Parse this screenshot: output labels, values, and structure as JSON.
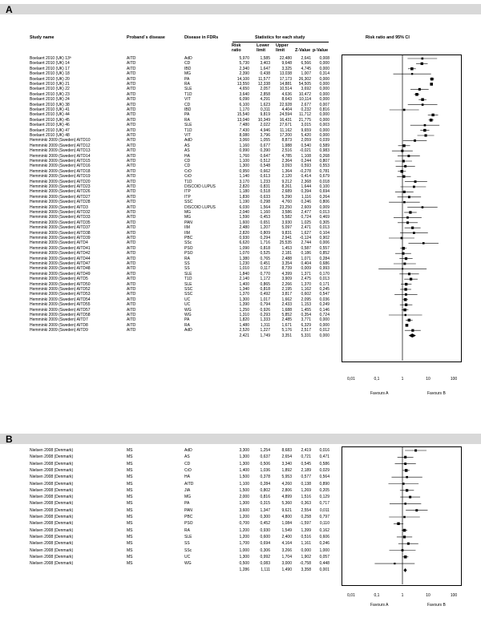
{
  "panel_a": {
    "label": "A",
    "headers": {
      "study": "Study name",
      "proband": "Proband´s disease",
      "fdr": "Disease in FDRs",
      "stats": "Statistics for each study",
      "rr": "Risk ratio",
      "lower": "Lower limit",
      "upper": "Upper limit",
      "z": "Z-Value",
      "p": "p-Value",
      "ci": "Risk ratio and 95% CI"
    },
    "axis_ticks": [
      "0,01",
      "0,1",
      "1",
      "10",
      "100"
    ],
    "favours_a": "Favours A",
    "favours_b": "Favours B",
    "rows": [
      {
        "study": "Boelaert 2010 (UK) 13ª",
        "proband": "AITD",
        "fdr": "AdD",
        "rr": "5,970",
        "lo": "1,585",
        "hi": "22,480",
        "z": "2,641",
        "p": "0,008"
      },
      {
        "study": "Boelaert 2010 (UK) 14",
        "proband": "AITD",
        "fdr": "CD",
        "rr": "5,730",
        "lo": "3,403",
        "hi": "9,648",
        "z": "6,566",
        "p": "0,000"
      },
      {
        "study": "Boelaert 2010 (UK) 17",
        "proband": "AITD",
        "fdr": "IBD",
        "rr": "2,340",
        "lo": "1,647",
        "hi": "3,325",
        "z": "4,745",
        "p": "0,000"
      },
      {
        "study": "Boelaert 2010 (UK) 18",
        "proband": "AITD",
        "fdr": "MG",
        "rr": "2,390",
        "lo": "0,438",
        "hi": "13,038",
        "z": "1,007",
        "p": "0,314"
      },
      {
        "study": "Boelaert 2010 (UK) 20",
        "proband": "AITD",
        "fdr": "PA",
        "rr": "14,100",
        "lo": "11,577",
        "hi": "17,173",
        "z": "26,302",
        "p": "0,000"
      },
      {
        "study": "Boelaert 2010 (UK) 21",
        "proband": "AITD",
        "fdr": "RA",
        "rr": "13,550",
        "lo": "12,338",
        "hi": "14,881",
        "z": "54,505",
        "p": "0,000"
      },
      {
        "study": "Boelaert 2010 (UK) 22",
        "proband": "AITD",
        "fdr": "SLE",
        "rr": "4,650",
        "lo": "2,057",
        "hi": "10,514",
        "z": "3,692",
        "p": "0,000"
      },
      {
        "study": "Boelaert 2010 (UK) 23",
        "proband": "AITD",
        "fdr": "T1D",
        "rr": "3,640",
        "lo": "2,858",
        "hi": "4,636",
        "z": "10,472",
        "p": "0,000"
      },
      {
        "study": "Boelaert 2010 (UK) 24",
        "proband": "AITD",
        "fdr": "VIT",
        "rr": "6,090",
        "lo": "4,291",
        "hi": "8,643",
        "z": "10,114",
        "p": "0,000"
      },
      {
        "study": "Boelaert 2010 (UK) 38",
        "proband": "AITD",
        "fdr": "CD",
        "rr": "6,100",
        "lo": "1,623",
        "hi": "22,928",
        "z": "2,677",
        "p": "0,007"
      },
      {
        "study": "Boelaert 2010 (UK) 41",
        "proband": "AITD",
        "fdr": "IBD",
        "rr": "1,170",
        "lo": "0,311",
        "hi": "4,404",
        "z": "0,232",
        "p": "0,816"
      },
      {
        "study": "Boelaert 2010 (UK) 44",
        "proband": "AITD",
        "fdr": "PA",
        "rr": "15,540",
        "lo": "9,819",
        "hi": "24,594",
        "z": "11,712",
        "p": "0,000"
      },
      {
        "study": "Boelaert 2010 (UK) 45",
        "proband": "AITD",
        "fdr": "RA",
        "rr": "13,040",
        "lo": "10,349",
        "hi": "16,431",
        "z": "21,775",
        "p": "0,000"
      },
      {
        "study": "Boelaert 2010 (UK) 46",
        "proband": "AITD",
        "fdr": "SLE",
        "rr": "7,480",
        "lo": "2,022",
        "hi": "27,671",
        "z": "3,015",
        "p": "0,003"
      },
      {
        "study": "Boelaert 2010 (UK) 47",
        "proband": "AITD",
        "fdr": "T1D",
        "rr": "7,430",
        "lo": "4,946",
        "hi": "11,162",
        "z": "9,659",
        "p": "0,000"
      },
      {
        "study": "Boelaert 2010 (UK) 48",
        "proband": "AITD",
        "fdr": "VIT",
        "rr": "8,080",
        "lo": "3,796",
        "hi": "17,200",
        "z": "5,420",
        "p": "0,000"
      },
      {
        "study": "Hemminki 2009 (Sweden) AITD10",
        "proband": "AITD",
        "fdr": "AdD",
        "rr": "3,060",
        "lo": "1,055",
        "hi": "8,873",
        "z": "2,059",
        "p": "0,039"
      },
      {
        "study": "Hemminki 2009 (Sweden) AITD12",
        "proband": "AITD",
        "fdr": "AS",
        "rr": "1,160",
        "lo": "0,677",
        "hi": "1,988",
        "z": "0,540",
        "p": "0,589"
      },
      {
        "study": "Hemminki 2009 (Sweden) AITD13",
        "proband": "AITD",
        "fdr": "AS",
        "rr": "0,990",
        "lo": "0,390",
        "hi": "2,516",
        "z": "-0,021",
        "p": "0,983"
      },
      {
        "study": "Hemminki 2009 (Sweden) AITD14",
        "proband": "AITD",
        "fdr": "HA",
        "rr": "1,760",
        "lo": "0,647",
        "hi": "4,785",
        "z": "1,108",
        "p": "0,268"
      },
      {
        "study": "Hemminki 2009 (Sweden) AITD15",
        "proband": "AITD",
        "fdr": "CD",
        "rr": "1,100",
        "lo": "0,512",
        "hi": "2,364",
        "z": "0,244",
        "p": "0,807"
      },
      {
        "study": "Hemminki 2009 (Sweden) AITD16",
        "proband": "AITD",
        "fdr": "CD",
        "rr": "1,300",
        "lo": "0,548",
        "hi": "3,093",
        "z": "0,593",
        "p": "0,553"
      },
      {
        "study": "Hemminki 2009 (Sweden) AITD18",
        "proband": "AITD",
        "fdr": "CrD",
        "rr": "0,950",
        "lo": "0,662",
        "hi": "1,364",
        "z": "-0,278",
        "p": "0,781"
      },
      {
        "study": "Hemminki 2009 (Sweden) AITD19",
        "proband": "AITD",
        "fdr": "CrD",
        "rr": "1,140",
        "lo": "0,613",
        "hi": "2,120",
        "z": "0,414",
        "p": "0,679"
      },
      {
        "study": "Hemminki 2009 (Sweden) AITD20",
        "proband": "AITD",
        "fdr": "T1D",
        "rr": "3,170",
        "lo": "1,233",
        "hi": "9,212",
        "z": "2,368",
        "p": "0,018"
      },
      {
        "study": "Hemminki 2009 (Sweden) AITD23",
        "proband": "AITD",
        "fdr": "DISCOID LUPUS",
        "rr": "2,820",
        "lo": "0,831",
        "hi": "8,261",
        "z": "1,644",
        "p": "0,100"
      },
      {
        "study": "Hemminki 2009 (Sweden) AITD26",
        "proband": "AITD",
        "fdr": "ITP",
        "rr": "1,180",
        "lo": "0,518",
        "hi": "2,689",
        "z": "0,394",
        "p": "0,694"
      },
      {
        "study": "Hemminki 2009 (Sweden) AITD27",
        "proband": "AITD",
        "fdr": "ITP",
        "rr": "1,830",
        "lo": "0,633",
        "hi": "5,290",
        "z": "1,116",
        "p": "0,264"
      },
      {
        "study": "Hemminki 2009 (Sweden) AITD28",
        "proband": "AITD",
        "fdr": "SSC",
        "rr": "1,190",
        "lo": "0,298",
        "hi": "4,760",
        "z": "0,246",
        "p": "0,806"
      },
      {
        "study": "Hemminki 2009 (Sweden) AITD3",
        "proband": "AITD",
        "fdr": "DISCOID LUPUS",
        "rr": "6,030",
        "lo": "1,564",
        "hi": "23,250",
        "z": "2,609",
        "p": "0,009"
      },
      {
        "study": "Hemminki 2009 (Sweden) AITD32",
        "proband": "AITD",
        "fdr": "MG",
        "rr": "2,040",
        "lo": "1,160",
        "hi": "3,586",
        "z": "2,477",
        "p": "0,013"
      },
      {
        "study": "Hemminki 2009 (Sweden) AITD33",
        "proband": "AITD",
        "fdr": "MG",
        "rr": "1,590",
        "lo": "0,453",
        "hi": "5,582",
        "z": "0,724",
        "p": "0,469"
      },
      {
        "study": "Hemminki 2009 (Sweden) AITD35",
        "proband": "AITD",
        "fdr": "PAN",
        "rr": "1,600",
        "lo": "0,651",
        "hi": "3,930",
        "z": "1,025",
        "p": "0,305"
      },
      {
        "study": "Hemminki 2009 (Sweden) AITD37",
        "proband": "AITD",
        "fdr": "IIM",
        "rr": "2,480",
        "lo": "1,207",
        "hi": "5,097",
        "z": "2,471",
        "p": "0,013"
      },
      {
        "study": "Hemminki 2009 (Sweden) AITD38",
        "proband": "AITD",
        "fdr": "IIM",
        "rr": "2,820",
        "lo": "0,809",
        "hi": "9,831",
        "z": "1,627",
        "p": "0,104"
      },
      {
        "study": "Hemminki 2009 (Sweden) AITD39",
        "proband": "AITD",
        "fdr": "PBC",
        "rr": "0,930",
        "lo": "0,294",
        "hi": "2,941",
        "z": "-0,124",
        "p": "0,902"
      },
      {
        "study": "Hemminki 2009 (Sweden) AITD4",
        "proband": "AITD",
        "fdr": "SSc",
        "rr": "6,620",
        "lo": "1,716",
        "hi": "25,535",
        "z": "2,744",
        "p": "0,006"
      },
      {
        "study": "Hemminki 2009 (Sweden) AITD41",
        "proband": "AITD",
        "fdr": "PSO",
        "rr": "1,090",
        "lo": "0,818",
        "hi": "1,453",
        "z": "0,587",
        "p": "0,557"
      },
      {
        "study": "Hemminki 2009 (Sweden) AITD42",
        "proband": "AITD",
        "fdr": "PSO",
        "rr": "1,070",
        "lo": "0,525",
        "hi": "2,181",
        "z": "0,186",
        "p": "0,852"
      },
      {
        "study": "Hemminki 2009 (Sweden) AITD44",
        "proband": "AITD",
        "fdr": "RA",
        "rr": "1,380",
        "lo": "0,765",
        "hi": "2,488",
        "z": "1,071",
        "p": "0,284"
      },
      {
        "study": "Hemminki 2009 (Sweden) AITD47",
        "proband": "AITD",
        "fdr": "SS",
        "rr": "1,230",
        "lo": "0,451",
        "hi": "3,354",
        "z": "0,404",
        "p": "0,686"
      },
      {
        "study": "Hemminki 2009 (Sweden) AITD48",
        "proband": "AITD",
        "fdr": "SS",
        "rr": "1,010",
        "lo": "0,117",
        "hi": "8,739",
        "z": "0,009",
        "p": "0,993"
      },
      {
        "study": "Hemminki 2009 (Sweden) AITD49",
        "proband": "AITD",
        "fdr": "SLE",
        "rr": "1,840",
        "lo": "0,770",
        "hi": "4,399",
        "z": "1,371",
        "p": "0,170"
      },
      {
        "study": "Hemminki 2009 (Sweden) AITD5",
        "proband": "AITD",
        "fdr": "T1D",
        "rr": "2,140",
        "lo": "1,172",
        "hi": "3,909",
        "z": "2,475",
        "p": "0,013"
      },
      {
        "study": "Hemminki 2009 (Sweden) AITD50",
        "proband": "AITD",
        "fdr": "SLE",
        "rr": "1,400",
        "lo": "0,865",
        "hi": "2,266",
        "z": "1,370",
        "p": "0,171"
      },
      {
        "study": "Hemminki 2009 (Sweden) AITD52",
        "proband": "AITD",
        "fdr": "SSC",
        "rr": "1,340",
        "lo": "0,818",
        "hi": "2,195",
        "z": "1,162",
        "p": "0,245"
      },
      {
        "study": "Hemminki 2009 (Sweden) AITD53",
        "proband": "AITD",
        "fdr": "SSC",
        "rr": "1,370",
        "lo": "0,492",
        "hi": "3,817",
        "z": "0,602",
        "p": "0,547"
      },
      {
        "study": "Hemminki 2009 (Sweden) AITD54",
        "proband": "AITD",
        "fdr": "UC",
        "rr": "1,300",
        "lo": "1,017",
        "hi": "1,662",
        "z": "2,095",
        "p": "0,036"
      },
      {
        "study": "Hemminki 2009 (Sweden) AITD55",
        "proband": "AITD",
        "fdr": "UC",
        "rr": "1,390",
        "lo": "0,794",
        "hi": "2,433",
        "z": "1,153",
        "p": "0,249"
      },
      {
        "study": "Hemminki 2009 (Sweden) AITD57",
        "proband": "AITD",
        "fdr": "WG",
        "rr": "1,250",
        "lo": "0,926",
        "hi": "1,688",
        "z": "1,455",
        "p": "0,146"
      },
      {
        "study": "Hemminki 2009 (Sweden) AITD58",
        "proband": "AITD",
        "fdr": "WG",
        "rr": "1,310",
        "lo": "0,293",
        "hi": "5,852",
        "z": "0,354",
        "p": "0,724"
      },
      {
        "study": "Hemminki 2009 (Sweden) AITD7",
        "proband": "AITD",
        "fdr": "PA",
        "rr": "1,820",
        "lo": "1,333",
        "hi": "2,485",
        "z": "3,771",
        "p": "0,000"
      },
      {
        "study": "Hemminki 2009 (Sweden) AITD8",
        "proband": "AITD",
        "fdr": "RA",
        "rr": "1,480",
        "lo": "1,311",
        "hi": "1,671",
        "z": "6,329",
        "p": "0,000"
      },
      {
        "study": "Hemminki 2009 (Sweden) AITD9",
        "proband": "AITD",
        "fdr": "AdD",
        "rr": "2,520",
        "lo": "1,227",
        "hi": "5,176",
        "z": "2,517",
        "p": "0,012"
      }
    ],
    "summary": {
      "rr": "2,421",
      "lo": "1,749",
      "hi": "3,351",
      "z": "5,331",
      "p": "0,000"
    }
  },
  "panel_b": {
    "label": "B",
    "axis_ticks": [
      "0,01",
      "0,1",
      "1",
      "10",
      "100"
    ],
    "favours_a": "Favours A",
    "favours_b": "Favours B",
    "rows": [
      {
        "study": "Nielsen 2008 (Denmark)",
        "proband": "MS",
        "fdr": "AdD",
        "rr": "3,300",
        "lo": "1,254",
        "hi": "8,683",
        "z": "2,419",
        "p": "0,016"
      },
      {
        "study": "Nielsen 2008 (Denmark)",
        "proband": "MS",
        "fdr": "AS",
        "rr": "1,300",
        "lo": "0,637",
        "hi": "2,654",
        "z": "0,721",
        "p": "0,471"
      },
      {
        "study": "Nielsen 2008 (Denmark)",
        "proband": "MS",
        "fdr": "CD",
        "rr": "1,300",
        "lo": "0,506",
        "hi": "3,340",
        "z": "0,545",
        "p": "0,586"
      },
      {
        "study": "Nielsen 2008 (Denmark)",
        "proband": "MS",
        "fdr": "CrD",
        "rr": "1,400",
        "lo": "1,036",
        "hi": "1,892",
        "z": "2,189",
        "p": "0,029"
      },
      {
        "study": "Nielsen 2008 (Denmark)",
        "proband": "MS",
        "fdr": "HA",
        "rr": "1,500",
        "lo": "0,378",
        "hi": "5,953",
        "z": "0,577",
        "p": "0,564"
      },
      {
        "study": "Nielsen 2008 (Denmark)",
        "proband": "MS",
        "fdr": "AITD",
        "rr": "1,100",
        "lo": "0,284",
        "hi": "4,260",
        "z": "0,138",
        "p": "0,890"
      },
      {
        "study": "Nielsen 2008 (Denmark)",
        "proband": "MS",
        "fdr": "JIA",
        "rr": "1,500",
        "lo": "0,802",
        "hi": "2,806",
        "z": "1,269",
        "p": "0,205"
      },
      {
        "study": "Nielsen 2008 (Denmark)",
        "proband": "MS",
        "fdr": "MG",
        "rr": "2,000",
        "lo": "0,816",
        "hi": "4,899",
        "z": "1,516",
        "p": "0,129"
      },
      {
        "study": "Nielsen 2008 (Denmark)",
        "proband": "MS",
        "fdr": "PA",
        "rr": "1,300",
        "lo": "0,315",
        "hi": "5,360",
        "z": "0,363",
        "p": "0,717"
      },
      {
        "study": "Nielsen 2008 (Denmark)",
        "proband": "MS",
        "fdr": "PAN",
        "rr": "3,600",
        "lo": "1,347",
        "hi": "9,621",
        "z": "2,554",
        "p": "0,011"
      },
      {
        "study": "Nielsen 2008 (Denmark)",
        "proband": "MS",
        "fdr": "PBC",
        "rr": "1,200",
        "lo": "0,300",
        "hi": "4,800",
        "z": "0,258",
        "p": "0,797"
      },
      {
        "study": "Nielsen 2008 (Denmark)",
        "proband": "MS",
        "fdr": "PSO",
        "rr": "0,700",
        "lo": "0,452",
        "hi": "1,084",
        "z": "-1,597",
        "p": "0,110"
      },
      {
        "study": "Nielsen 2008 (Denmark)",
        "proband": "MS",
        "fdr": "RA",
        "rr": "1,200",
        "lo": "0,930",
        "hi": "1,549",
        "z": "1,399",
        "p": "0,162"
      },
      {
        "study": "Nielsen 2008 (Denmark)",
        "proband": "MS",
        "fdr": "SLE",
        "rr": "1,200",
        "lo": "0,600",
        "hi": "2,400",
        "z": "0,516",
        "p": "0,606"
      },
      {
        "study": "Nielsen 2008 (Denmark)",
        "proband": "MS",
        "fdr": "SS",
        "rr": "1,700",
        "lo": "0,694",
        "hi": "4,164",
        "z": "1,161",
        "p": "0,246"
      },
      {
        "study": "Nielsen 2008 (Denmark)",
        "proband": "MS",
        "fdr": "SSc",
        "rr": "1,000",
        "lo": "0,306",
        "hi": "3,266",
        "z": "0,000",
        "p": "1,000"
      },
      {
        "study": "Nielsen 2008 (Denmark)",
        "proband": "MS",
        "fdr": "UC",
        "rr": "1,300",
        "lo": "0,992",
        "hi": "1,704",
        "z": "1,902",
        "p": "0,057"
      },
      {
        "study": "Nielsen 2008 (Denmark)",
        "proband": "MS",
        "fdr": "WG",
        "rr": "0,500",
        "lo": "0,083",
        "hi": "3,000",
        "z": "-0,758",
        "p": "0,448"
      }
    ],
    "summary": {
      "rr": "1,286",
      "lo": "1,111",
      "hi": "1,490",
      "z": "3,358",
      "p": "0,001"
    }
  }
}
